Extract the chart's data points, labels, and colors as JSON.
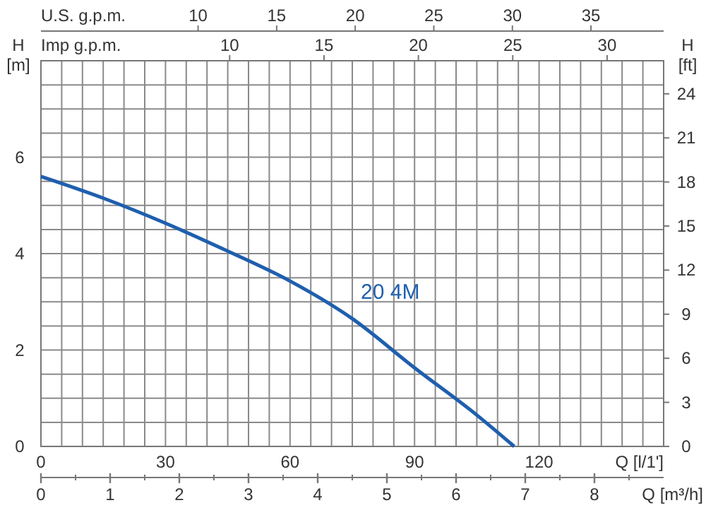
{
  "chart_data": {
    "type": "line",
    "xlabel": "Q [l/1']",
    "ylabel": "H [m]",
    "y2label": "H [ft]",
    "x2label": "Q [m³/h]",
    "x": [
      0,
      15,
      30,
      45,
      60,
      75,
      90,
      105,
      114
    ],
    "series": [
      {
        "name": "20 4M",
        "color": "#1f5fae",
        "values": [
          5.6,
          5.15,
          4.63,
          4.05,
          3.43,
          2.65,
          1.63,
          0.65,
          0
        ]
      }
    ],
    "xlim": [
      0,
      150
    ],
    "xticks": [
      0,
      {
        "value": 5,
        "label": null
      },
      {
        "value": 10,
        "label": null
      },
      {
        "value": 15,
        "label": null
      },
      {
        "value": 20,
        "label": null
      },
      {
        "value": 25,
        "label": null
      },
      30,
      {
        "value": 35,
        "label": null
      },
      {
        "value": 40,
        "label": null
      },
      {
        "value": 45,
        "label": null
      },
      {
        "value": 50,
        "label": null
      },
      {
        "value": 55,
        "label": null
      },
      60,
      {
        "value": 65,
        "label": null
      },
      {
        "value": 70,
        "label": null
      },
      {
        "value": 75,
        "label": null
      },
      {
        "value": 80,
        "label": null
      },
      {
        "value": 85,
        "label": null
      },
      90,
      {
        "value": 95,
        "label": null
      },
      {
        "value": 100,
        "label": null
      },
      {
        "value": 105,
        "label": null
      },
      {
        "value": 110,
        "label": null
      },
      {
        "value": 115,
        "label": null
      },
      120,
      {
        "value": 125,
        "label": null
      },
      {
        "value": 130,
        "label": null
      },
      {
        "value": 135,
        "label": null
      },
      {
        "value": 140,
        "label": null
      },
      {
        "value": 145,
        "label": null
      },
      {
        "value": 150,
        "label": null
      }
    ],
    "ylim": [
      0,
      8
    ],
    "yticks": [
      0,
      {
        "value": 0.5,
        "label": null
      },
      {
        "value": 1,
        "label": null
      },
      {
        "value": 1.5,
        "label": null
      },
      2,
      {
        "value": 2.5,
        "label": null
      },
      {
        "value": 3,
        "label": null
      },
      {
        "value": 3.5,
        "label": null
      },
      4,
      {
        "value": 4.5,
        "label": null
      },
      {
        "value": 5,
        "label": null
      },
      {
        "value": 5.5,
        "label": null
      },
      6,
      {
        "value": 6.5,
        "label": null
      },
      {
        "value": 7,
        "label": null
      },
      {
        "value": 7.5,
        "label": null
      },
      {
        "value": 8,
        "label": null
      }
    ],
    "y2lim": [
      0,
      26.25
    ],
    "y2ticks": [
      0,
      3,
      6,
      9,
      12,
      15,
      18,
      21,
      24
    ],
    "x2lim": [
      0,
      9
    ],
    "x2ticks": [
      0,
      1,
      2,
      3,
      4,
      5,
      6,
      7,
      8
    ],
    "annotations": [
      "U.S. g.p.m.",
      "10",
      "15",
      "20",
      "25",
      "30",
      "35",
      "Imp g.p.m.",
      "10",
      "15",
      "20",
      "25",
      "30"
    ],
    "grid": true,
    "marker": "none",
    "line_style": "solid"
  }
}
